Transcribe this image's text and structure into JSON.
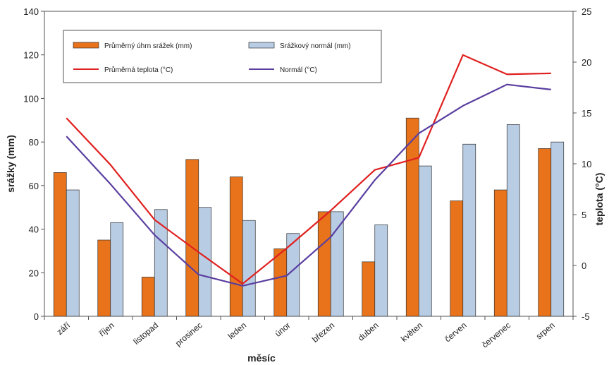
{
  "chart_data": {
    "type": "bar",
    "title": "",
    "xlabel": "měsíc",
    "ylabel": "srážky (mm)",
    "y2label": "teplota (°C)",
    "categories": [
      "září",
      "říjen",
      "listopad",
      "prosinec",
      "leden",
      "únor",
      "březen",
      "duben",
      "květen",
      "červen",
      "červenec",
      "srpen"
    ],
    "ylim": [
      0,
      140
    ],
    "y2lim": [
      -5,
      25
    ],
    "yticks": [
      "0",
      "20",
      "40",
      "60",
      "80",
      "100",
      "120",
      "140"
    ],
    "y2ticks": [
      "-5",
      "0",
      "5",
      "10",
      "15",
      "20",
      "25"
    ],
    "grid": false,
    "legend_position": "top",
    "series": [
      {
        "name": "Průměrný úhrn srážek (mm)",
        "type": "bar",
        "axis": "left",
        "color": "#E8731A",
        "values": [
          66,
          35,
          18,
          72,
          64,
          31,
          48,
          25,
          91,
          53,
          58,
          77
        ]
      },
      {
        "name": "Srážkový normál (mm)",
        "type": "bar",
        "axis": "left",
        "color": "#B8CCE4",
        "values": [
          58,
          43,
          49,
          50,
          44,
          38,
          48,
          42,
          69,
          79,
          88,
          80
        ]
      },
      {
        "name": "Průměrná teplota (°C)",
        "type": "line",
        "axis": "right",
        "color": "#E02020",
        "values": [
          14.5,
          9.9,
          4.5,
          1.3,
          -1.8,
          1.7,
          5.4,
          9.4,
          10.6,
          20.7,
          18.8,
          18.9
        ]
      },
      {
        "name": "Normál (°C)",
        "type": "line",
        "axis": "right",
        "color": "#5A3FA0",
        "values": [
          12.7,
          8.0,
          3.0,
          -0.9,
          -2.0,
          -1.0,
          2.8,
          8.4,
          13.0,
          15.7,
          17.8,
          17.3
        ]
      }
    ]
  }
}
